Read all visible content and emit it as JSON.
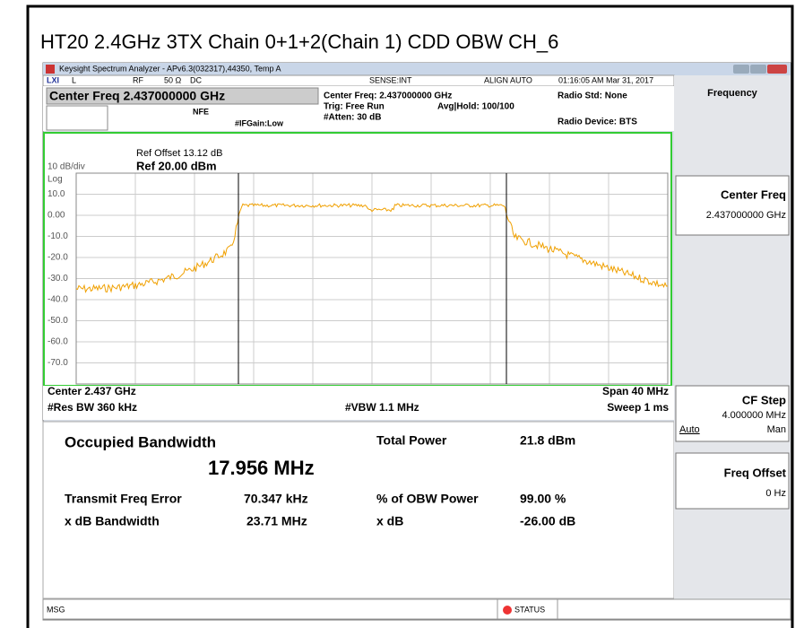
{
  "header": {
    "title": "HT20 2.4GHz 3TX Chain 0+1+2(Chain 1) CDD OBW CH_6"
  },
  "window": {
    "title": "Keysight Spectrum Analyzer - APv6.3(032317),44350, Temp A"
  },
  "status_bar": {
    "lxi": "LXI",
    "l": "L",
    "rf": "RF",
    "impedance": "50 Ω",
    "coupling": "DC",
    "sense": "SENSE:INT",
    "align": "ALIGN AUTO",
    "datetime": "01:16:05 AM Mar 31, 2017"
  },
  "settings": {
    "center_freq_box": "Center Freq 2.437000000 GHz",
    "nfe": "NFE",
    "if_gain": "#IFGain:Low",
    "center_freq": "Center Freq: 2.437000000 GHz",
    "trig": "Trig: Free Run",
    "avg_hold": "Avg|Hold: 100/100",
    "atten": "#Atten: 30 dB",
    "radio_std": "Radio Std: None",
    "radio_device": "Radio Device: BTS"
  },
  "graph": {
    "ref_offset": "Ref Offset 13.12 dB",
    "scale": "10 dB/div",
    "ref_level": "Ref 20.00 dBm",
    "log": "Log",
    "y_labels": [
      "10.0",
      "0.00",
      "-10.0",
      "-20.0",
      "-30.0",
      "-40.0",
      "-50.0",
      "-60.0",
      "-70.0"
    ],
    "center": "Center 2.437 GHz",
    "res_bw": "#Res BW 360 kHz",
    "vbw": "#VBW 1.1 MHz",
    "span": "Span 40 MHz",
    "sweep": "Sweep 1 ms"
  },
  "results": {
    "obw_label": "Occupied Bandwidth",
    "obw_value": "17.956 MHz",
    "total_power_label": "Total Power",
    "total_power_value": "21.8 dBm",
    "freq_error_label": "Transmit Freq Error",
    "freq_error_value": "70.347 kHz",
    "obw_power_label": "% of OBW Power",
    "obw_power_value": "99.00 %",
    "xdb_bw_label": "x dB Bandwidth",
    "xdb_bw_value": "23.71 MHz",
    "xdb_label": "x dB",
    "xdb_value": "-26.00 dB"
  },
  "menu": {
    "title": "Frequency",
    "center_freq": "Center Freq",
    "center_freq_value": "2.437000000 GHz",
    "cf_step": "CF Step",
    "cf_step_value": "4.000000 MHz",
    "auto": "Auto",
    "man": "Man",
    "freq_offset": "Freq Offset",
    "freq_offset_value": "0 Hz"
  },
  "bottom_bar": {
    "msg": "MSG",
    "status": "STATUS"
  }
}
